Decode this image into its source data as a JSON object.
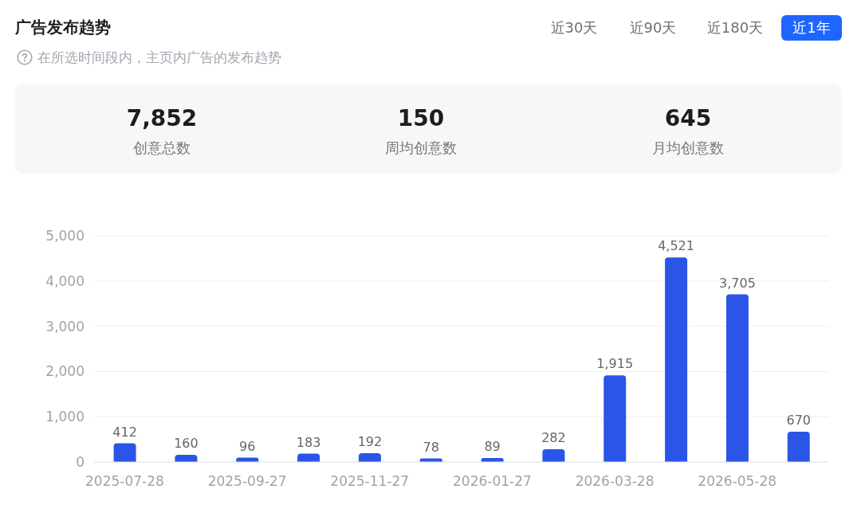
{
  "chart_data": {
    "type": "bar",
    "title": "广告发布趋势",
    "subtitle": "在所选时间段内，主页内广告的发布趋势",
    "annotations": [
      "近30天",
      "近90天",
      "近180天",
      "近1年",
      "7,852",
      "创意总数",
      "150",
      "周均创意数",
      "645",
      "月均创意数"
    ],
    "categories": [
      "2025-07-28",
      null,
      "2025-09-27",
      null,
      "2025-11-27",
      null,
      "2026-01-27",
      null,
      "2026-03-28",
      null,
      "2026-05-28",
      null
    ],
    "values": [
      412,
      160,
      96,
      183,
      192,
      78,
      89,
      282,
      1915,
      4521,
      3705,
      670
    ],
    "value_labels": [
      "412",
      "160",
      "96",
      "183",
      "192",
      "78",
      "89",
      "282",
      "1,915",
      "4,521",
      "3,705",
      "670"
    ],
    "color": "#2b55e6",
    "ylim": [
      0,
      5000
    ],
    "yticks": [
      0,
      {
        "value": 1000,
        "label": "1,000"
      },
      {
        "value": 2000,
        "label": "2,000"
      },
      {
        "value": 3000,
        "label": "3,000"
      },
      {
        "value": 4000,
        "label": "4,000"
      },
      {
        "value": 5000,
        "label": "5,000"
      }
    ],
    "grid": "y"
  }
}
